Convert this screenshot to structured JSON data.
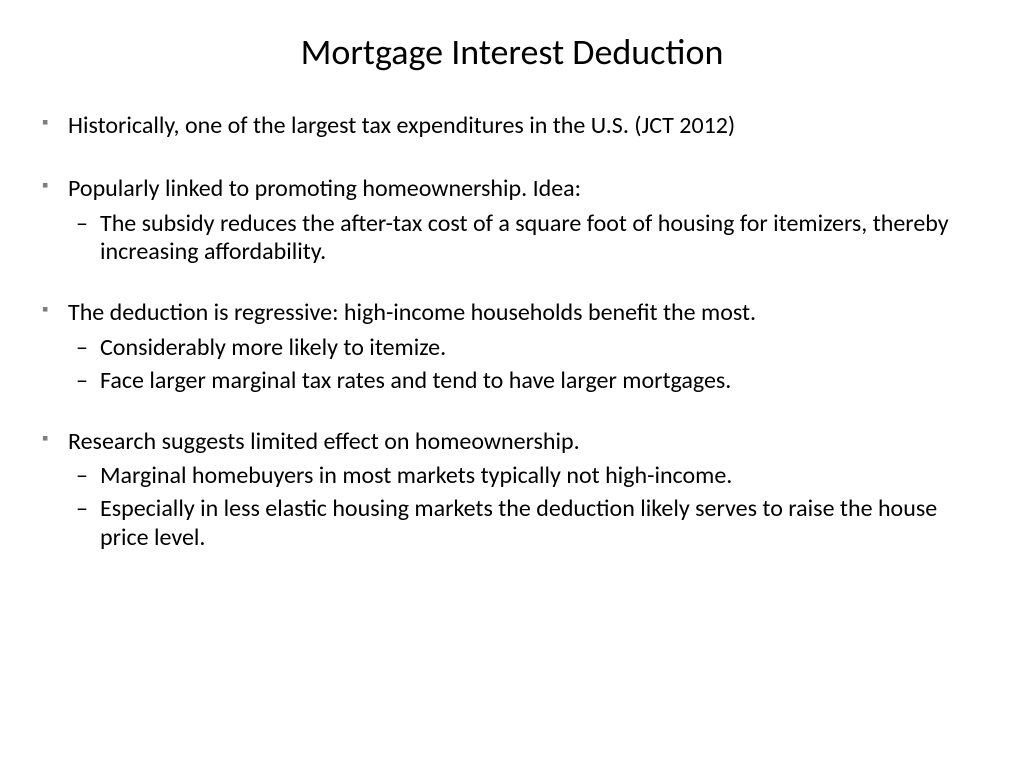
{
  "slide": {
    "title": "Mortgage Interest Deduction",
    "title_fontsize": 36,
    "body_fontsize": 24,
    "background_color": "#ffffff",
    "text_color": "#000000",
    "bullet_square_color": "#7f7f7f",
    "bullets": [
      {
        "level": 1,
        "text": "Historically, one of the largest tax expenditures in the U.S. (JCT 2012)"
      },
      {
        "level": 1,
        "text": "Popularly linked to promoting homeownership.   Idea:"
      },
      {
        "level": 2,
        "text": "The subsidy reduces the after-tax cost of a square foot of housing for itemizers, thereby increasing affordability."
      },
      {
        "level": 1,
        "text": "The deduction is regressive:  high-income households benefit the most."
      },
      {
        "level": 2,
        "text": "Considerably more likely to itemize."
      },
      {
        "level": 2,
        "text": "Face larger marginal tax rates and tend to have larger mortgages."
      },
      {
        "level": 1,
        "text": "Research suggests limited effect on homeownership."
      },
      {
        "level": 2,
        "text": "Marginal homebuyers in most markets typically not high-income."
      },
      {
        "level": 2,
        "text": "Especially in less elastic housing markets the deduction likely serves to raise the house price level."
      }
    ]
  }
}
